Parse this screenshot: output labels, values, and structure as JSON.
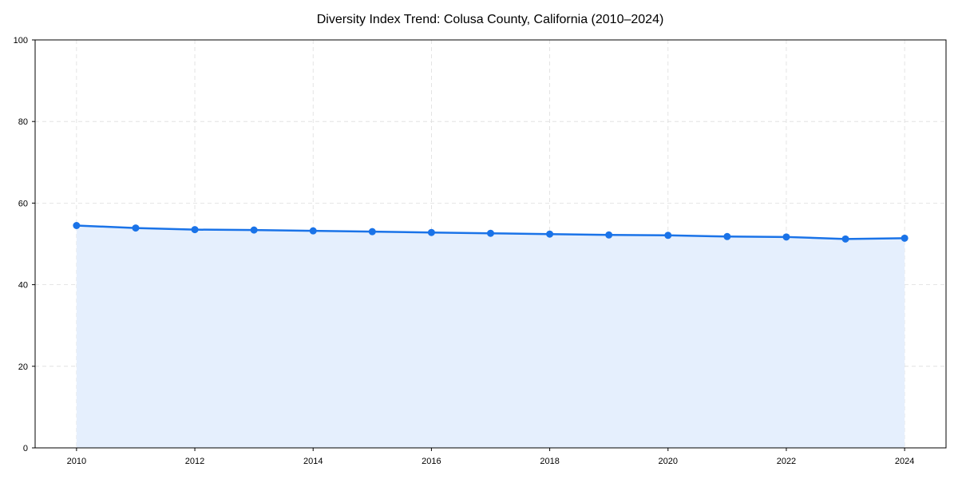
{
  "chart_data": {
    "type": "line",
    "title": "Diversity Index Trend: Colusa County, California (2010–2024)",
    "xlabel": "",
    "ylabel": "",
    "x": [
      2010,
      2011,
      2012,
      2013,
      2014,
      2015,
      2016,
      2017,
      2018,
      2019,
      2020,
      2021,
      2022,
      2023,
      2024
    ],
    "series": [
      {
        "name": "Diversity Index",
        "values": [
          54.5,
          53.9,
          53.5,
          53.4,
          53.2,
          53.0,
          52.8,
          52.6,
          52.4,
          52.2,
          52.1,
          51.8,
          51.7,
          51.2,
          51.4
        ]
      }
    ],
    "xticks": [
      "2010",
      "2012",
      "2014",
      "2016",
      "2018",
      "2020",
      "2022",
      "2024"
    ],
    "yticks": [
      "0",
      "20",
      "40",
      "60",
      "80",
      "100"
    ],
    "xlim": [
      2009.3,
      2024.7
    ],
    "ylim": [
      0,
      100
    ],
    "grid": true,
    "fill_under": true,
    "colors": {
      "line": "#1a73e8",
      "fill": "#e5effd",
      "grid": "#dddddd"
    }
  }
}
